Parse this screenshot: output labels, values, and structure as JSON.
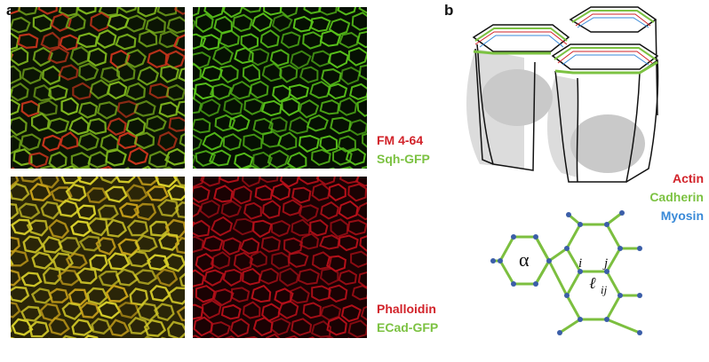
{
  "panel_a": {
    "letter": "a",
    "images": [
      {
        "id": "merge-top",
        "tint": "#4a7a12"
      },
      {
        "id": "sqh-gfp",
        "tint": "#2f7a0a"
      },
      {
        "id": "merge-bottom",
        "tint": "#b7a21e"
      },
      {
        "id": "phalloidin",
        "tint": "#8a0a10"
      }
    ],
    "legend_top": [
      {
        "label": "FM 4-64",
        "color": "#d2232a"
      },
      {
        "label": "Sqh-GFP",
        "color": "#7cc242"
      }
    ],
    "legend_bottom": [
      {
        "label": "Phalloidin",
        "color": "#d2232a"
      },
      {
        "label": "ECad-GFP",
        "color": "#7cc242"
      }
    ]
  },
  "panel_b": {
    "letter": "b",
    "legend": [
      {
        "label": "Actin",
        "color": "#d2232a"
      },
      {
        "label": "Cadherin",
        "color": "#7cc242"
      },
      {
        "label": "Myosin",
        "color": "#3a8ad8"
      }
    ],
    "cell_label": "α",
    "vertex_i": "i",
    "vertex_j": "j",
    "edge_label": "ℓ",
    "edge_subscript": "ij",
    "colors": {
      "edge": "#7cbf3f",
      "vertex": "#3b5ea8",
      "cell_outline": "#111111",
      "shadow": "#d8d8d8"
    }
  }
}
